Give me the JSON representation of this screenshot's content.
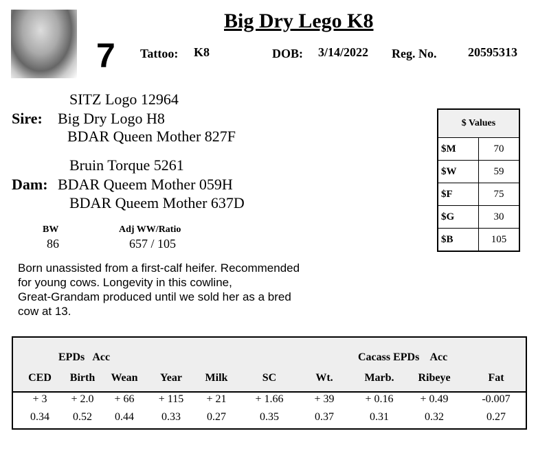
{
  "header": {
    "title": "Big Dry Lego K8",
    "lot": "7",
    "tattoo_label": "Tattoo:",
    "tattoo": "K8",
    "dob_label": "DOB:",
    "dob": "3/14/2022",
    "reg_label": "Reg. No.",
    "reg": "20595313"
  },
  "sire": {
    "label": "Sire:",
    "sire_sire": "SITZ Logo 12964",
    "name": "Big Dry Logo H8",
    "sire_dam": "BDAR Queen Mother 827F"
  },
  "dam": {
    "label": "Dam:",
    "dam_sire": "Bruin Torque 5261",
    "name": "BDAR Queem Mother 059H",
    "dam_dam": "BDAR Queem Mother 637D"
  },
  "weights": {
    "bw_label": "BW",
    "bw": "86",
    "ww_label": "Adj WW/Ratio",
    "ww": "657 / 105"
  },
  "notes": [
    "Born unassisted from a first-calf heifer.  Recommended",
    "for young cows.  Longevity in this cowline,",
    "Great-Grandam produced until we sold her as a bred",
    "cow at 13."
  ],
  "values": {
    "title": "$ Values",
    "rows": [
      {
        "k": "$M",
        "v": "70"
      },
      {
        "k": "$W",
        "v": "59"
      },
      {
        "k": "$F",
        "v": "75"
      },
      {
        "k": "$G",
        "v": "30"
      },
      {
        "k": "$B",
        "v": "105"
      }
    ]
  },
  "epds": {
    "group1": "EPDs   Acc",
    "group2": "Cacass EPDs    Acc",
    "columns": [
      "CED",
      "Birth",
      "Wean",
      "Year",
      "Milk",
      "SC",
      "Wt.",
      "Marb.",
      "Ribeye",
      "Fat"
    ],
    "epd": [
      "+ 3",
      "+ 2.0",
      "+ 66",
      "+ 115",
      "+ 21",
      "+ 1.66",
      "+ 39",
      "+ 0.16",
      "+ 0.49",
      "-0.007"
    ],
    "acc": [
      "0.34",
      "0.52",
      "0.44",
      "0.33",
      "0.27",
      "0.35",
      "0.37",
      "0.31",
      "0.32",
      "0.27"
    ]
  }
}
